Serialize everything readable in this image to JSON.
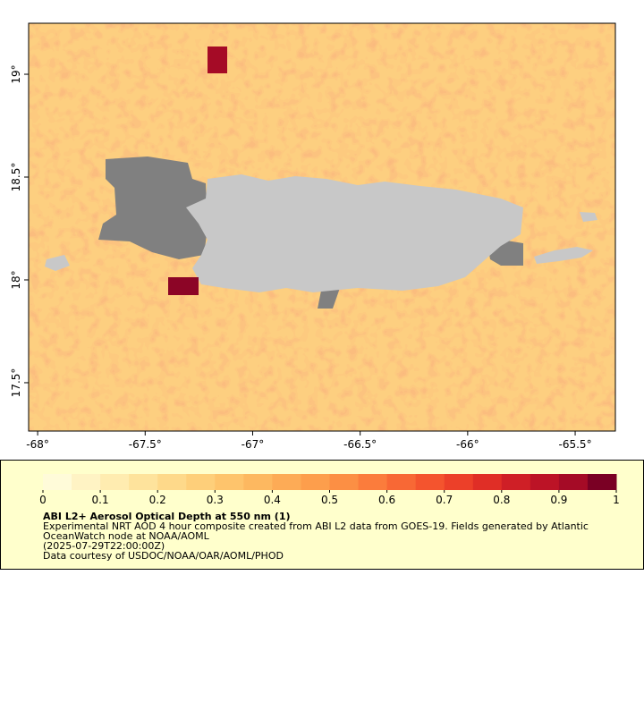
{
  "map": {
    "xlim": [
      -68.042,
      -65.313
    ],
    "ylim": [
      17.265,
      19.248
    ],
    "xticks": [
      {
        "value": -68,
        "label": "-68°"
      },
      {
        "value": -67.5,
        "label": "-67.5°"
      },
      {
        "value": -67,
        "label": "-67°"
      },
      {
        "value": -66.5,
        "label": "-66.5°"
      },
      {
        "value": -66,
        "label": "-66°"
      },
      {
        "value": -65.5,
        "label": "-65.5°"
      }
    ],
    "yticks": [
      {
        "value": 17.5,
        "label": "17.5°"
      },
      {
        "value": 18,
        "label": "18°"
      },
      {
        "value": 18.5,
        "label": "18.5°"
      },
      {
        "value": 19,
        "label": "19°"
      }
    ]
  },
  "colorbar": {
    "lim": [
      0,
      1
    ],
    "ticks": [
      0,
      0.1,
      0.2,
      0.3,
      0.4,
      0.5,
      0.6,
      0.7,
      0.8,
      0.9,
      1
    ],
    "colors": [
      "#fffbd9",
      "#fff3c4",
      "#ffecb0",
      "#fee39c",
      "#fed98a",
      "#fecf7a",
      "#fec46c",
      "#fdb860",
      "#fdab56",
      "#fd9e4c",
      "#fc8f44",
      "#fb7c3c",
      "#f86835",
      "#f4542e",
      "#ec4029",
      "#e02e26",
      "#cf1f26",
      "#bc1326",
      "#a50b26",
      "#7a0024"
    ]
  },
  "legend": {
    "title": "ABI L2+ Aerosol Optical Depth at 550 nm (1)",
    "lines": [
      "Experimental NRT AOD 4 hour composite created from ABI L2 data from GOES-19. Fields generated by Atlantic",
      "OceanWatch node at NOAA/AOML",
      "(2025-07-29T22:00:00Z)",
      "Data courtesy of USDOC/NOAA/OAR/AOML/PHOD"
    ]
  }
}
